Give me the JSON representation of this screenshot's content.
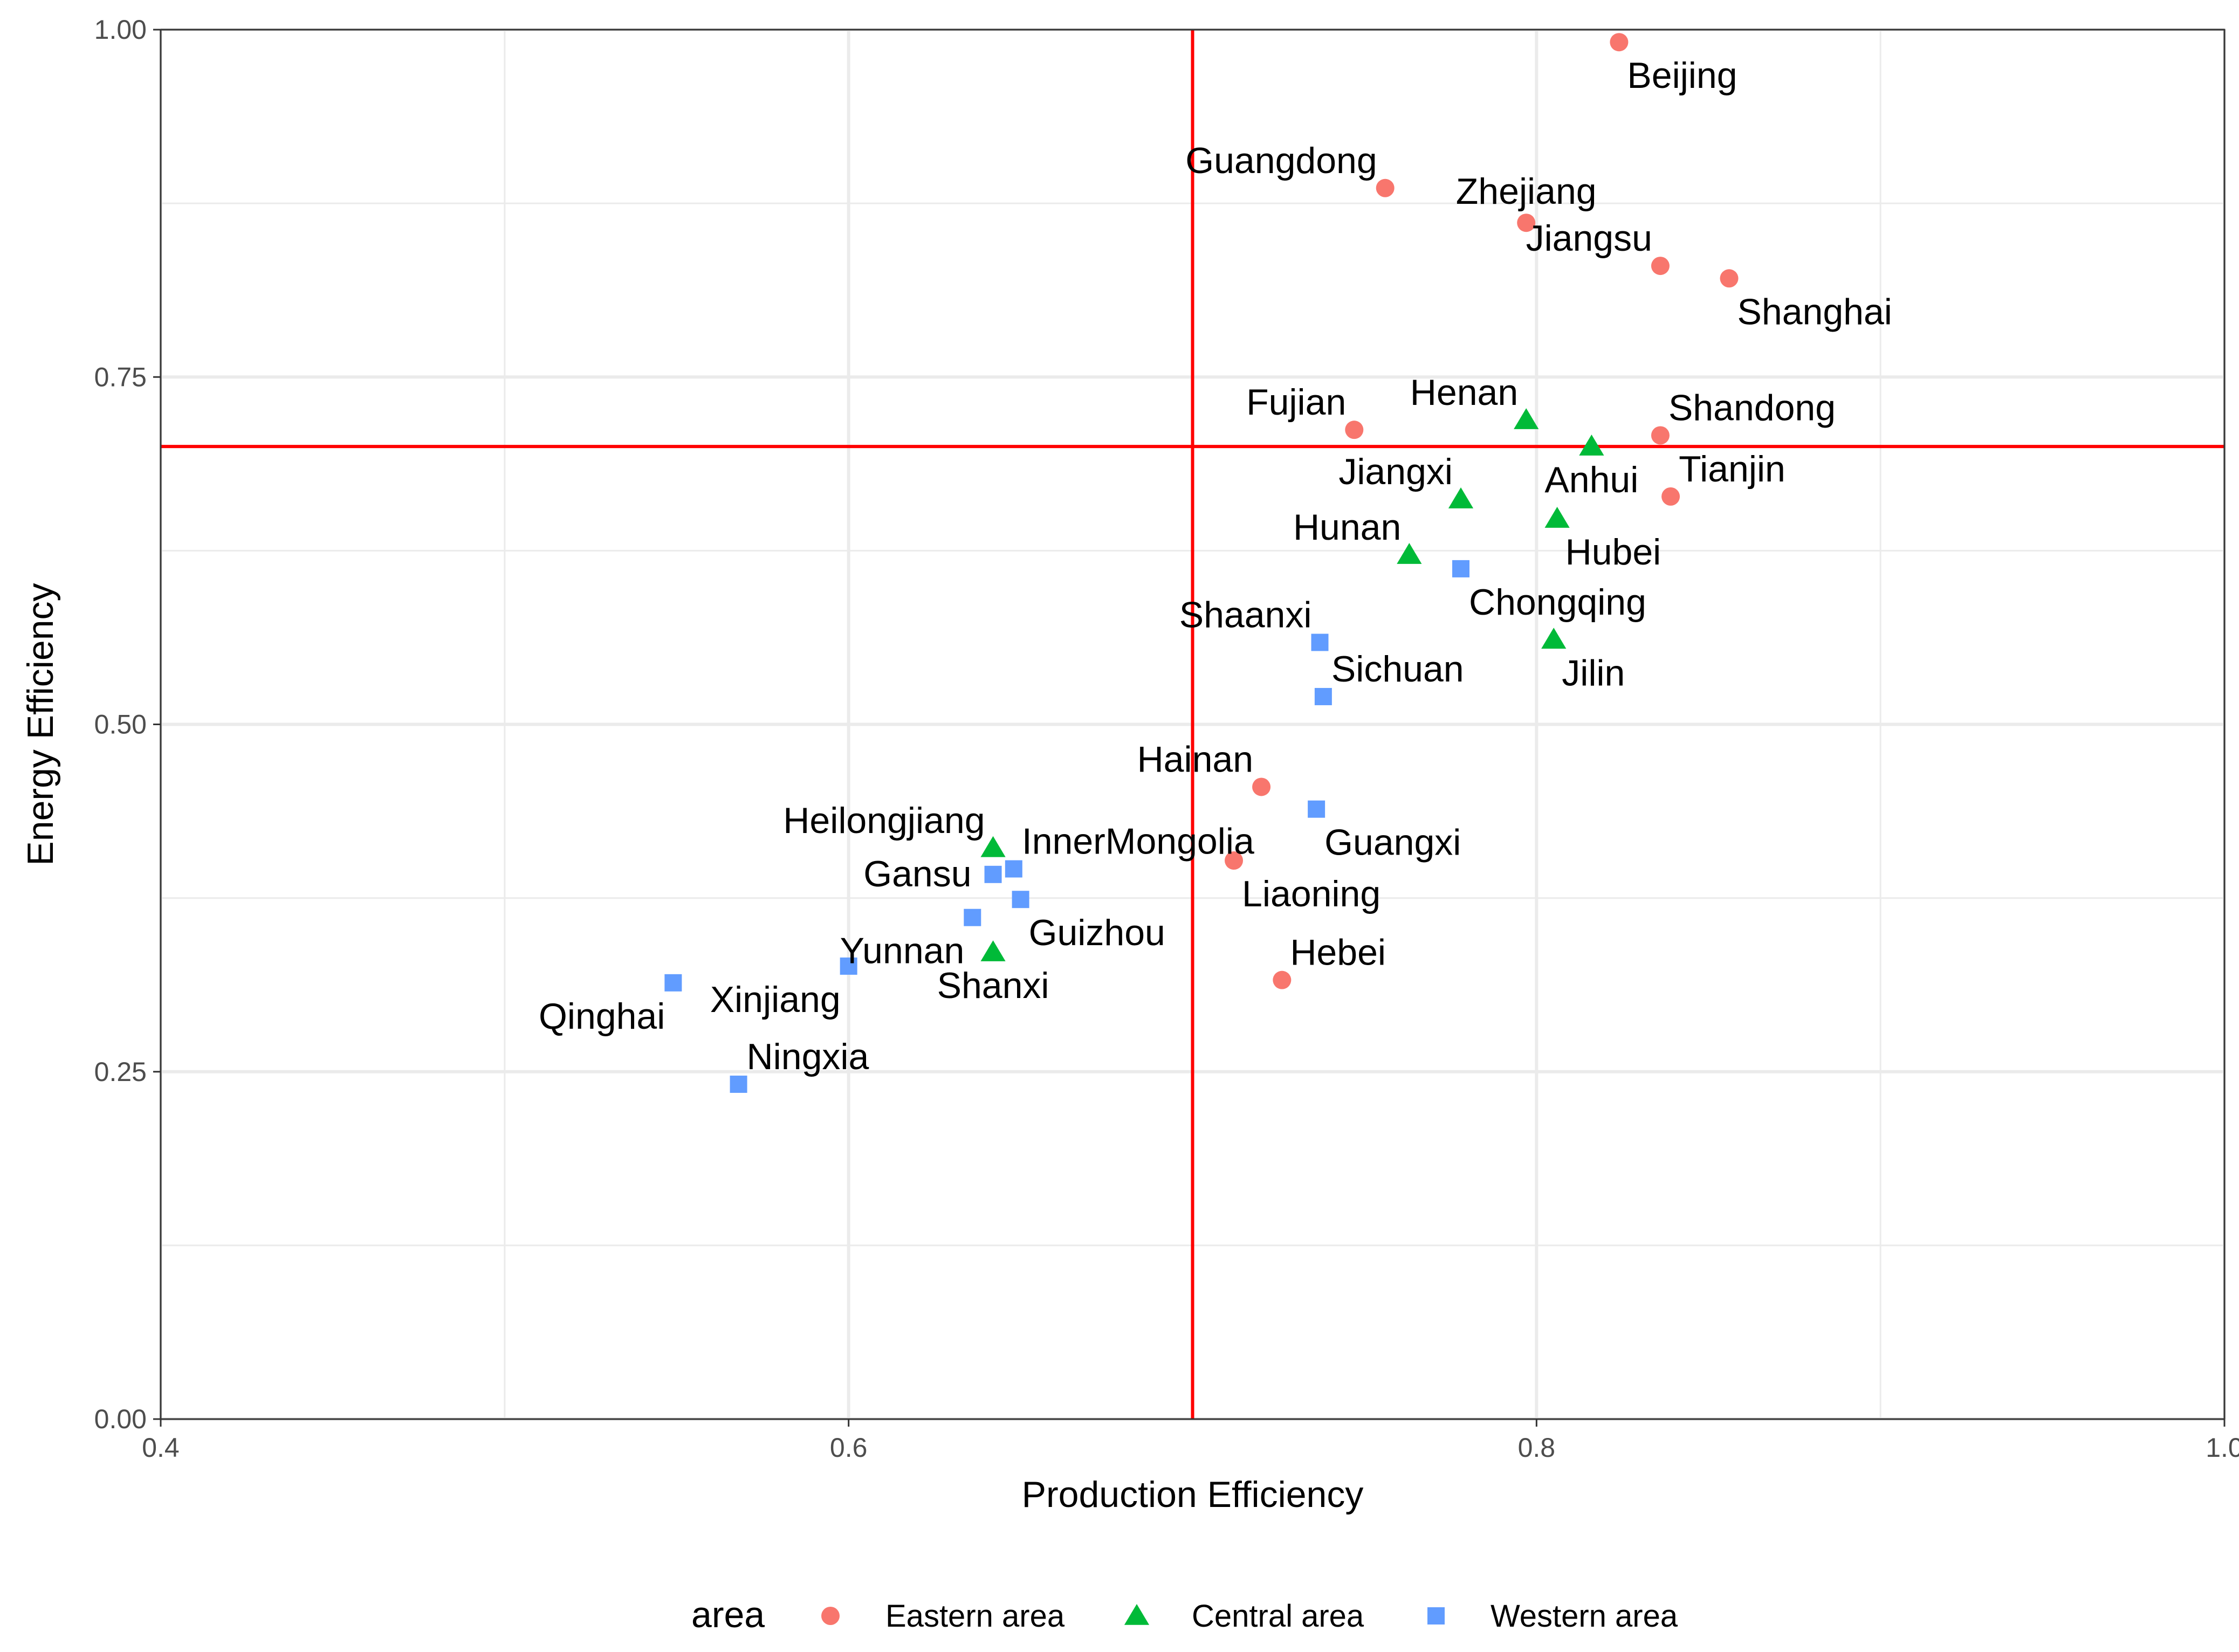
{
  "chart_data": {
    "type": "scatter",
    "title": "",
    "xlabel": "Production Efficiency",
    "ylabel": "Energy Efficiency",
    "xlim": [
      0.4,
      1.0
    ],
    "ylim": [
      0.0,
      1.0
    ],
    "x_ticks": [
      {
        "value": 0.4,
        "label": "0.4"
      },
      {
        "value": 0.6,
        "label": "0.6"
      },
      {
        "value": 0.8,
        "label": "0.8"
      },
      {
        "value": 1.0,
        "label": "1.0"
      }
    ],
    "y_ticks": [
      {
        "value": 0.0,
        "label": "0.00"
      },
      {
        "value": 0.25,
        "label": "0.25"
      },
      {
        "value": 0.5,
        "label": "0.50"
      },
      {
        "value": 0.75,
        "label": "0.75"
      },
      {
        "value": 1.0,
        "label": "1.00"
      }
    ],
    "grid": true,
    "reference_lines": {
      "x": 0.7,
      "y": 0.7,
      "color": "#ff0000"
    },
    "legend": {
      "title": "area",
      "position": "bottom",
      "entries": [
        {
          "name": "Eastern area",
          "color": "#f8766d",
          "shape": "circle"
        },
        {
          "name": "Central area",
          "color": "#00ba38",
          "shape": "triangle"
        },
        {
          "name": "Western area",
          "color": "#619cff",
          "shape": "square"
        }
      ]
    },
    "series": [
      {
        "name": "Eastern area",
        "points": [
          {
            "label": "Beijing",
            "x": 0.824,
            "y": 0.991,
            "label_pos": "below-right"
          },
          {
            "label": "Guangdong",
            "x": 0.756,
            "y": 0.886,
            "label_pos": "above-left"
          },
          {
            "label": "Zhejiang",
            "x": 0.797,
            "y": 0.861,
            "label_pos": "above"
          },
          {
            "label": "Jiangsu",
            "x": 0.836,
            "y": 0.83,
            "label_pos": "above-left"
          },
          {
            "label": "Shanghai",
            "x": 0.856,
            "y": 0.821,
            "label_pos": "below-right"
          },
          {
            "label": "Fujian",
            "x": 0.747,
            "y": 0.712,
            "label_pos": "above-left"
          },
          {
            "label": "Shandong",
            "x": 0.836,
            "y": 0.708,
            "label_pos": "above-right"
          },
          {
            "label": "Tianjin",
            "x": 0.839,
            "y": 0.664,
            "label_pos": "above-right"
          },
          {
            "label": "Hainan",
            "x": 0.72,
            "y": 0.455,
            "label_pos": "above-left"
          },
          {
            "label": "Liaoning",
            "x": 0.712,
            "y": 0.402,
            "label_pos": "below-right"
          },
          {
            "label": "Hebei",
            "x": 0.726,
            "y": 0.316,
            "label_pos": "above-right"
          }
        ]
      },
      {
        "name": "Central area",
        "points": [
          {
            "label": "Henan",
            "x": 0.797,
            "y": 0.719,
            "label_pos": "above-left"
          },
          {
            "label": "Anhui",
            "x": 0.816,
            "y": 0.7,
            "label_pos": "below"
          },
          {
            "label": "Jiangxi",
            "x": 0.778,
            "y": 0.662,
            "label_pos": "above-left"
          },
          {
            "label": "Hubei",
            "x": 0.806,
            "y": 0.648,
            "label_pos": "below-right"
          },
          {
            "label": "Hunan",
            "x": 0.763,
            "y": 0.622,
            "label_pos": "above-left"
          },
          {
            "label": "Jilin",
            "x": 0.805,
            "y": 0.561,
            "label_pos": "below-right"
          },
          {
            "label": "Heilongjiang",
            "x": 0.642,
            "y": 0.411,
            "label_pos": "above-left"
          },
          {
            "label": "Shanxi",
            "x": 0.642,
            "y": 0.336,
            "label_pos": "below"
          }
        ]
      },
      {
        "name": "Western area",
        "points": [
          {
            "label": "Chongqing",
            "x": 0.778,
            "y": 0.612,
            "label_pos": "below-right"
          },
          {
            "label": "Shaanxi",
            "x": 0.737,
            "y": 0.559,
            "label_pos": "above-left"
          },
          {
            "label": "Sichuan",
            "x": 0.738,
            "y": 0.52,
            "label_pos": "above-right"
          },
          {
            "label": "Guangxi",
            "x": 0.736,
            "y": 0.439,
            "label_pos": "below-right"
          },
          {
            "label": "InnerMongolia",
            "x": 0.648,
            "y": 0.396,
            "label_pos": "above-right"
          },
          {
            "label": "Gansu",
            "x": 0.642,
            "y": 0.392,
            "label_pos": "left"
          },
          {
            "label": "Guizhou",
            "x": 0.65,
            "y": 0.374,
            "label_pos": "below-right"
          },
          {
            "label": "Yunnan",
            "x": 0.636,
            "y": 0.361,
            "label_pos": "below-left"
          },
          {
            "label": "Xinjiang",
            "x": 0.6,
            "y": 0.326,
            "label_pos": "below-left"
          },
          {
            "label": "Qinghai",
            "x": 0.549,
            "y": 0.314,
            "label_pos": "below-left"
          },
          {
            "label": "Ningxia",
            "x": 0.568,
            "y": 0.241,
            "label_pos": "above-right"
          }
        ]
      }
    ]
  }
}
